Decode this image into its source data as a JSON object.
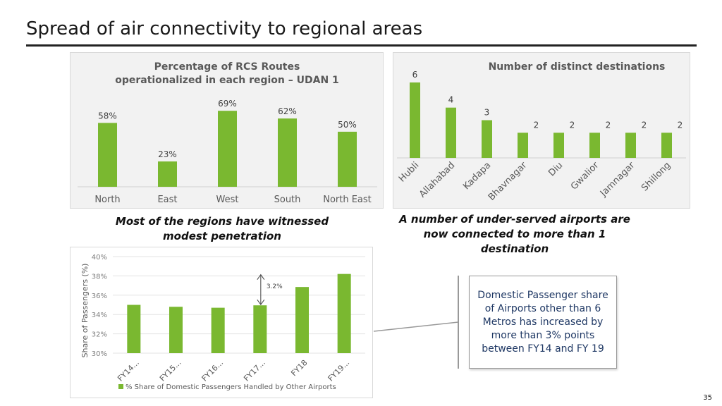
{
  "slide": {
    "title": "Spread of air connectivity to regional areas",
    "page_number": "35"
  },
  "captions": {
    "left": "Most of the regions have witnessed modest penetration",
    "right": "A number of under-served airports are now connected to more than 1 destination"
  },
  "callout": {
    "text": "Domestic Passenger share of Airports other than 6 Metros has increased by more than 3% points between FY14 and FY 19"
  },
  "colors": {
    "bar": "#7ab830",
    "panel_bg": "#f2f2f2",
    "callout_text": "#1f3864"
  },
  "chart_data": [
    {
      "type": "bar",
      "title": "Percentage of RCS Routes operationalized in each region – UDAN 1",
      "title_lines": [
        "Percentage of RCS Routes",
        "operationalized in each region – UDAN 1"
      ],
      "categories": [
        "North",
        "East",
        "West",
        "South",
        "North East"
      ],
      "values": [
        58,
        23,
        69,
        62,
        50
      ],
      "data_labels": [
        "58%",
        "23%",
        "69%",
        "62%",
        "50%"
      ],
      "ylim": [
        0,
        80
      ],
      "grid": false,
      "legend": "none"
    },
    {
      "type": "bar",
      "title": "Number of distinct destinations",
      "categories": [
        "Hubli",
        "Allahabad",
        "Kadapa",
        "Bhavnagar",
        "Diu",
        "Gwalior",
        "Jamnagar",
        "Shillong"
      ],
      "values": [
        6,
        4,
        3,
        2,
        2,
        2,
        2,
        2
      ],
      "data_labels": [
        "6",
        "4",
        "3",
        "2",
        "2",
        "2",
        "2",
        "2"
      ],
      "ylim": [
        0,
        6
      ],
      "grid": false,
      "legend": "none"
    },
    {
      "type": "bar",
      "categories": [
        "FY14...",
        "FY15...",
        "FY16...",
        "FY17...",
        "FY18",
        "FY19..."
      ],
      "values": [
        35.0,
        34.8,
        34.7,
        34.95,
        36.85,
        38.2
      ],
      "ylabel": "Share of Passengers (%)",
      "ylim": [
        30,
        40
      ],
      "yticks": [
        "30%",
        "32%",
        "34%",
        "36%",
        "38%",
        "40%"
      ],
      "ytick_values": [
        30,
        32,
        34,
        36,
        38,
        40
      ],
      "grid": true,
      "legend": "bottom-left",
      "series_name": "% Share of Domestic Passengers Handled by Other Airports",
      "annotation": {
        "text": "3.2%",
        "from_category": "FY17...",
        "from_value": 34.95,
        "to_value": 38.2
      }
    }
  ]
}
